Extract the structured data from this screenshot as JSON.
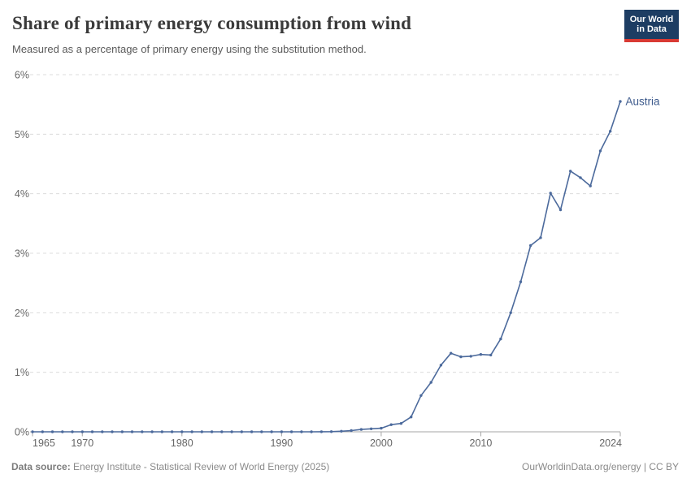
{
  "header": {
    "title": "Share of primary energy consumption from wind",
    "subtitle": "Measured as a percentage of primary energy using the substitution method.",
    "logo": {
      "line1": "Our World",
      "line2": "in Data",
      "bg_color": "#1d3d63",
      "bar_color": "#d93a34"
    }
  },
  "chart_data": {
    "type": "line",
    "title": "Share of primary energy consumption from wind",
    "subtitle": "Measured as a percentage of primary energy using the substitution method.",
    "xlabel": "",
    "ylabel": "",
    "xlim": [
      1965,
      2024
    ],
    "ylim": [
      0,
      6
    ],
    "grid": "horizontal-dashed",
    "legend_position": "end-of-line-label",
    "x_ticks": [
      1965,
      1970,
      1980,
      1990,
      2000,
      2010,
      2024
    ],
    "y_ticks": [
      {
        "value": 0,
        "label": "0%"
      },
      {
        "value": 1,
        "label": "1%"
      },
      {
        "value": 2,
        "label": "2%"
      },
      {
        "value": 3,
        "label": "3%"
      },
      {
        "value": 4,
        "label": "4%"
      },
      {
        "value": 5,
        "label": "5%"
      },
      {
        "value": 6,
        "label": "6%"
      }
    ],
    "series": [
      {
        "name": "Austria",
        "color": "#4c6a9c",
        "label_color": "#3d5a8c",
        "points": [
          [
            1965,
            0
          ],
          [
            1966,
            0
          ],
          [
            1967,
            0
          ],
          [
            1968,
            0
          ],
          [
            1969,
            0
          ],
          [
            1970,
            0
          ],
          [
            1971,
            0
          ],
          [
            1972,
            0
          ],
          [
            1973,
            0
          ],
          [
            1974,
            0
          ],
          [
            1975,
            0
          ],
          [
            1976,
            0
          ],
          [
            1977,
            0
          ],
          [
            1978,
            0
          ],
          [
            1979,
            0
          ],
          [
            1980,
            0
          ],
          [
            1981,
            0
          ],
          [
            1982,
            0
          ],
          [
            1983,
            0
          ],
          [
            1984,
            0
          ],
          [
            1985,
            0
          ],
          [
            1986,
            0
          ],
          [
            1987,
            0
          ],
          [
            1988,
            0
          ],
          [
            1989,
            0
          ],
          [
            1990,
            0
          ],
          [
            1991,
            0
          ],
          [
            1992,
            0
          ],
          [
            1993,
            0
          ],
          [
            1994,
            0.001
          ],
          [
            1995,
            0.003
          ],
          [
            1996,
            0.01
          ],
          [
            1997,
            0.02
          ],
          [
            1998,
            0.04
          ],
          [
            1999,
            0.05
          ],
          [
            2000,
            0.06
          ],
          [
            2001,
            0.12
          ],
          [
            2002,
            0.14
          ],
          [
            2003,
            0.25
          ],
          [
            2004,
            0.61
          ],
          [
            2005,
            0.83
          ],
          [
            2006,
            1.12
          ],
          [
            2007,
            1.32
          ],
          [
            2008,
            1.26
          ],
          [
            2009,
            1.27
          ],
          [
            2010,
            1.3
          ],
          [
            2011,
            1.29
          ],
          [
            2012,
            1.56
          ],
          [
            2013,
            2.0
          ],
          [
            2014,
            2.52
          ],
          [
            2015,
            3.13
          ],
          [
            2016,
            3.26
          ],
          [
            2017,
            4.01
          ],
          [
            2018,
            3.73
          ],
          [
            2019,
            4.38
          ],
          [
            2020,
            4.27
          ],
          [
            2021,
            4.13
          ],
          [
            2022,
            4.72
          ],
          [
            2023,
            5.05
          ],
          [
            2024,
            5.55
          ]
        ]
      }
    ],
    "colors": {
      "gridline": "#dcdcdc",
      "axis_line": "#a5a5a5",
      "tick_label": "#666666"
    }
  },
  "footer": {
    "source_prefix": "Data source:",
    "source_text": " Energy Institute - Statistical Review of World Energy (2025)",
    "right_text": "OurWorldinData.org/energy | CC BY"
  }
}
